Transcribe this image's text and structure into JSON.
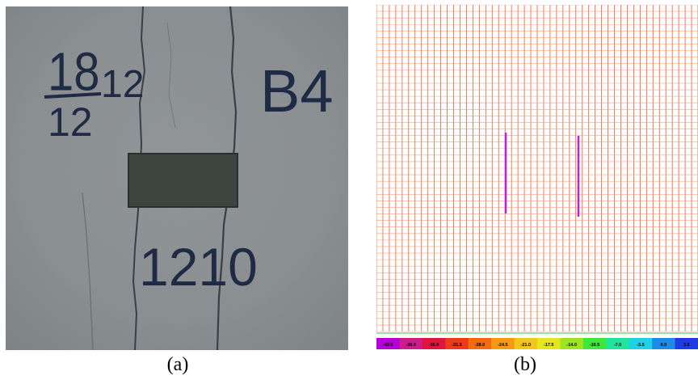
{
  "panel_a": {
    "caption": "(a)",
    "handwriting": {
      "fraction_top": "18",
      "fraction_bottom": "12",
      "side_number": "12",
      "specimen_id": "B4",
      "bottom_number": "1210"
    },
    "colors": {
      "concrete": "#8e9294",
      "crack": "#3a3f45",
      "ink": "#1f2a44",
      "patch": "#3e4440"
    }
  },
  "panel_b": {
    "caption": "(b)",
    "legend_ticks": [
      "-42.0",
      "-38.5",
      "-35.0",
      "-31.5",
      "-28.0",
      "-24.5",
      "-21.0",
      "-17.5",
      "-14.0",
      "-10.5",
      "-7.0",
      "-3.5",
      "0.0",
      "3.5"
    ],
    "legend_colors": [
      "#b400d6",
      "#d01a8c",
      "#e0143c",
      "#ef3a1a",
      "#f46a10",
      "#f79a10",
      "#f7c41a",
      "#e6e61e",
      "#9be61e",
      "#3fe63c",
      "#1ee6a0",
      "#1ed2e6",
      "#1e8ce6",
      "#1e3ce6"
    ],
    "colors": {
      "grid": "#f25a2a",
      "grid_light": "#f7a07a",
      "crack_band": "#c020e0"
    }
  }
}
